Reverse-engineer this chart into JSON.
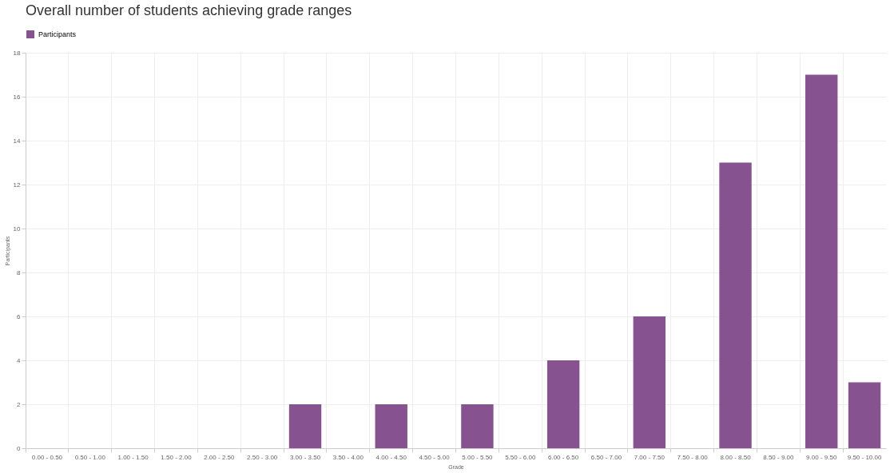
{
  "chart_data": {
    "type": "bar",
    "title": "Overall number of students achieving grade ranges",
    "xlabel": "Grade",
    "ylabel": "Participants",
    "categories": [
      "0.00 - 0.50",
      "0.50 - 1.00",
      "1.00 - 1.50",
      "1.50 - 2.00",
      "2.00 - 2.50",
      "2.50 - 3.00",
      "3.00 - 3.50",
      "3.50 - 4.00",
      "4.00 - 4.50",
      "4.50 - 5.00",
      "5.00 - 5.50",
      "5.50 - 6.00",
      "6.00 - 6.50",
      "6.50 - 7.00",
      "7.00 - 7.50",
      "7.50 - 8.00",
      "8.00 - 8.50",
      "8.50 - 9.00",
      "9.00 - 9.50",
      "9.50 - 10.00"
    ],
    "series": [
      {
        "name": "Participants",
        "color": "#86528f",
        "values": [
          0,
          0,
          0,
          0,
          0,
          0,
          2,
          0,
          2,
          0,
          2,
          0,
          4,
          0,
          6,
          0,
          13,
          0,
          17,
          3
        ]
      }
    ],
    "ylim": [
      0,
      18
    ],
    "yticks": [
      0,
      2,
      4,
      6,
      8,
      10,
      12,
      14,
      16,
      18
    ],
    "grid": true,
    "legend": "top"
  }
}
